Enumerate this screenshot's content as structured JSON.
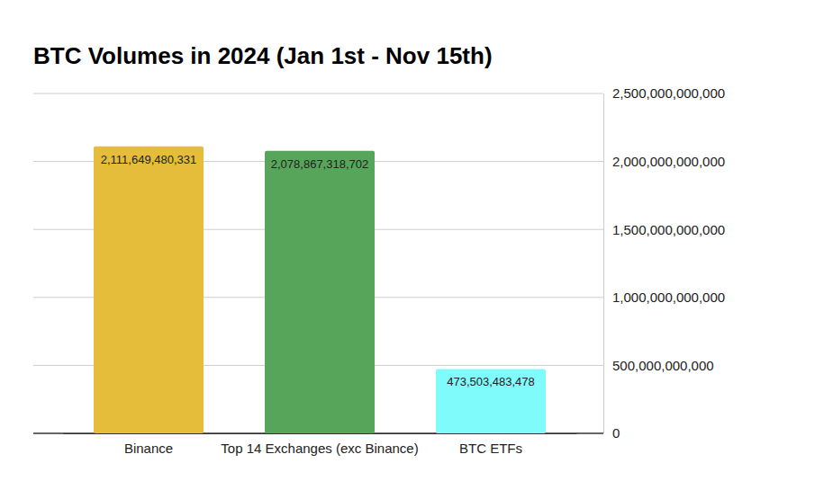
{
  "chart_data": {
    "type": "bar",
    "title": "BTC Volumes in 2024 (Jan 1st - Nov 15th)",
    "categories": [
      "Binance",
      "Top 14 Exchanges (exc Binance)",
      "BTC ETFs"
    ],
    "values": [
      2111649480331,
      2078867318702,
      473503483478
    ],
    "value_labels": [
      "2,111,649,480,331",
      "2,078,867,318,702",
      "473,503,483,478"
    ],
    "colors": [
      "#e5bd3a",
      "#57a55a",
      "#7ffbfb"
    ],
    "ylim": [
      0,
      2500000000000
    ],
    "yticks": [
      0,
      {
        "value": 500000000000,
        "label": "500,000,000,000"
      },
      {
        "value": 1000000000000,
        "label": "1,000,000,000,000"
      },
      {
        "value": 1500000000000,
        "label": "1,500,000,000,000"
      },
      {
        "value": 2000000000000,
        "label": "2,000,000,000,000"
      },
      {
        "value": 2500000000000,
        "label": "2,500,000,000,000"
      }
    ],
    "grid": true,
    "data_labels": true
  }
}
